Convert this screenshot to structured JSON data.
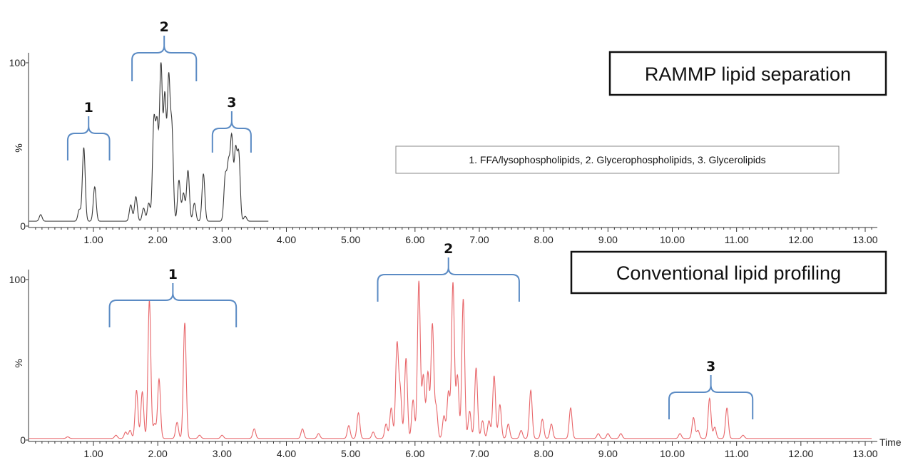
{
  "chart_data": [
    {
      "type": "line",
      "title": "RAMMP lipid separation",
      "xlabel": "",
      "ylabel": "%",
      "xlim": [
        0,
        13.1
      ],
      "ylim": [
        0,
        100
      ],
      "y_ticks": [
        "0",
        "100"
      ],
      "x_ticks": [
        "1.00",
        "2.00",
        "3.00",
        "4.00",
        "5.00",
        "6.00",
        "7.00",
        "8.00",
        "9.00",
        "10.00",
        "11.00",
        "12.00",
        "13.00"
      ],
      "line_color": "#3a3a3a",
      "trace_end": 3.72,
      "baseline": 3,
      "legend_note": "1. FFA/lysophospholipids, 2. Glycerophospholipids, 3. Glycerolipids",
      "peaks": [
        {
          "x": 0.18,
          "y": 7
        },
        {
          "x": 0.85,
          "y": 48
        },
        {
          "x": 0.78,
          "y": 10
        },
        {
          "x": 1.02,
          "y": 24
        },
        {
          "x": 1.58,
          "y": 13
        },
        {
          "x": 1.66,
          "y": 18
        },
        {
          "x": 1.78,
          "y": 11
        },
        {
          "x": 1.86,
          "y": 14
        },
        {
          "x": 1.94,
          "y": 63
        },
        {
          "x": 1.99,
          "y": 60
        },
        {
          "x": 2.05,
          "y": 98
        },
        {
          "x": 2.11,
          "y": 78
        },
        {
          "x": 2.17,
          "y": 88
        },
        {
          "x": 2.22,
          "y": 58
        },
        {
          "x": 2.33,
          "y": 28
        },
        {
          "x": 2.4,
          "y": 20
        },
        {
          "x": 2.47,
          "y": 34
        },
        {
          "x": 2.57,
          "y": 14
        },
        {
          "x": 2.71,
          "y": 32
        },
        {
          "x": 3.05,
          "y": 30
        },
        {
          "x": 3.1,
          "y": 36
        },
        {
          "x": 3.15,
          "y": 53
        },
        {
          "x": 3.21,
          "y": 45
        },
        {
          "x": 3.26,
          "y": 43
        },
        {
          "x": 3.36,
          "y": 6
        }
      ],
      "groups": [
        {
          "label": "1",
          "x_start": 0.6,
          "x_end": 1.25
        },
        {
          "label": "2",
          "x_start": 1.6,
          "x_end": 2.6
        },
        {
          "label": "3",
          "x_start": 2.85,
          "x_end": 3.45
        }
      ]
    },
    {
      "type": "line",
      "title": "Conventional lipid profiling",
      "xlabel": "Time",
      "ylabel": "%",
      "xlim": [
        0,
        13.1
      ],
      "ylim": [
        0,
        100
      ],
      "y_ticks": [
        "0",
        "100"
      ],
      "x_ticks": [
        "1.00",
        "2.00",
        "3.00",
        "4.00",
        "5.00",
        "6.00",
        "7.00",
        "8.00",
        "9.00",
        "10.00",
        "11.00",
        "12.00",
        "13.00"
      ],
      "line_color": "#e8666a",
      "trace_end": 13.1,
      "baseline": 1,
      "peaks": [
        {
          "x": 0.6,
          "y": 2
        },
        {
          "x": 1.35,
          "y": 3
        },
        {
          "x": 1.5,
          "y": 5
        },
        {
          "x": 1.57,
          "y": 6
        },
        {
          "x": 1.67,
          "y": 31
        },
        {
          "x": 1.76,
          "y": 30
        },
        {
          "x": 1.87,
          "y": 87
        },
        {
          "x": 1.95,
          "y": 10
        },
        {
          "x": 2.02,
          "y": 38
        },
        {
          "x": 2.3,
          "y": 11
        },
        {
          "x": 2.42,
          "y": 73
        },
        {
          "x": 2.65,
          "y": 3
        },
        {
          "x": 3.0,
          "y": 3
        },
        {
          "x": 3.5,
          "y": 7
        },
        {
          "x": 4.25,
          "y": 7
        },
        {
          "x": 4.5,
          "y": 4
        },
        {
          "x": 4.97,
          "y": 9
        },
        {
          "x": 5.12,
          "y": 17
        },
        {
          "x": 5.35,
          "y": 5
        },
        {
          "x": 5.55,
          "y": 10
        },
        {
          "x": 5.63,
          "y": 20
        },
        {
          "x": 5.72,
          "y": 59
        },
        {
          "x": 5.77,
          "y": 30
        },
        {
          "x": 5.86,
          "y": 51
        },
        {
          "x": 5.97,
          "y": 25
        },
        {
          "x": 6.06,
          "y": 99
        },
        {
          "x": 6.13,
          "y": 40
        },
        {
          "x": 6.2,
          "y": 42
        },
        {
          "x": 6.27,
          "y": 72
        },
        {
          "x": 6.33,
          "y": 20
        },
        {
          "x": 6.45,
          "y": 15
        },
        {
          "x": 6.52,
          "y": 30
        },
        {
          "x": 6.59,
          "y": 98
        },
        {
          "x": 6.66,
          "y": 40
        },
        {
          "x": 6.75,
          "y": 88
        },
        {
          "x": 6.85,
          "y": 18
        },
        {
          "x": 6.95,
          "y": 45
        },
        {
          "x": 7.05,
          "y": 12
        },
        {
          "x": 7.15,
          "y": 12
        },
        {
          "x": 7.23,
          "y": 40
        },
        {
          "x": 7.32,
          "y": 22
        },
        {
          "x": 7.45,
          "y": 10
        },
        {
          "x": 7.65,
          "y": 6
        },
        {
          "x": 7.8,
          "y": 31
        },
        {
          "x": 7.98,
          "y": 13
        },
        {
          "x": 8.12,
          "y": 10
        },
        {
          "x": 8.42,
          "y": 20
        },
        {
          "x": 8.85,
          "y": 4
        },
        {
          "x": 9.0,
          "y": 4
        },
        {
          "x": 9.2,
          "y": 4
        },
        {
          "x": 10.12,
          "y": 4
        },
        {
          "x": 10.33,
          "y": 14
        },
        {
          "x": 10.4,
          "y": 6
        },
        {
          "x": 10.58,
          "y": 26
        },
        {
          "x": 10.66,
          "y": 8
        },
        {
          "x": 10.85,
          "y": 20
        },
        {
          "x": 11.1,
          "y": 3
        }
      ],
      "groups": [
        {
          "label": "1",
          "x_start": 1.25,
          "x_end": 3.22
        },
        {
          "label": "2",
          "x_start": 5.42,
          "x_end": 7.62
        },
        {
          "label": "3",
          "x_start": 9.95,
          "x_end": 11.25
        }
      ]
    }
  ],
  "style": {
    "bracket_color": "#5b8bc4",
    "frame_color": "#111111"
  }
}
